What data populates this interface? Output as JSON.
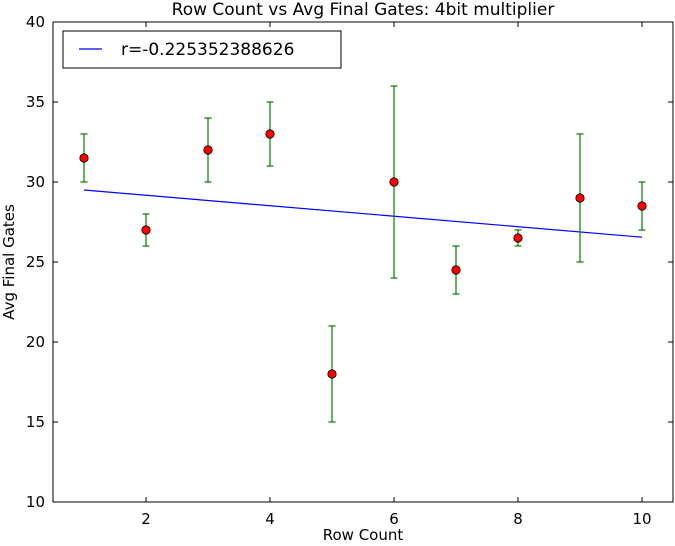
{
  "chart_data": {
    "type": "scatter",
    "title": "Row Count vs Avg Final Gates: 4bit multiplier",
    "xlabel": "Row Count",
    "ylabel": "Avg Final Gates",
    "xlim": [
      0.5,
      10.5
    ],
    "ylim": [
      10,
      40
    ],
    "xticks": [
      2,
      4,
      6,
      8,
      10
    ],
    "yticks": [
      10,
      15,
      20,
      25,
      30,
      35,
      40
    ],
    "grid": false,
    "legend_position": "top-left",
    "points": [
      {
        "x": 1,
        "y": 31.5,
        "err_low": 30,
        "err_high": 33
      },
      {
        "x": 2,
        "y": 27,
        "err_low": 26,
        "err_high": 28
      },
      {
        "x": 3,
        "y": 32,
        "err_low": 30,
        "err_high": 34
      },
      {
        "x": 4,
        "y": 33,
        "err_low": 31,
        "err_high": 35
      },
      {
        "x": 5,
        "y": 18,
        "err_low": 15,
        "err_high": 21
      },
      {
        "x": 6,
        "y": 30,
        "err_low": 24,
        "err_high": 36
      },
      {
        "x": 7,
        "y": 24.5,
        "err_low": 23,
        "err_high": 26
      },
      {
        "x": 8,
        "y": 26.5,
        "err_low": 26,
        "err_high": 27
      },
      {
        "x": 9,
        "y": 29,
        "err_low": 25,
        "err_high": 33
      },
      {
        "x": 10,
        "y": 28.5,
        "err_low": 27,
        "err_high": 30
      }
    ],
    "fit_line": {
      "name": "r=-0.225352388626",
      "x": [
        1,
        10
      ],
      "y": [
        29.5,
        26.55
      ]
    },
    "colors": {
      "marker_fill": "#ff0000",
      "marker_edge": "#000000",
      "error_bar": "#008000",
      "fit_line": "#0000ff"
    }
  }
}
